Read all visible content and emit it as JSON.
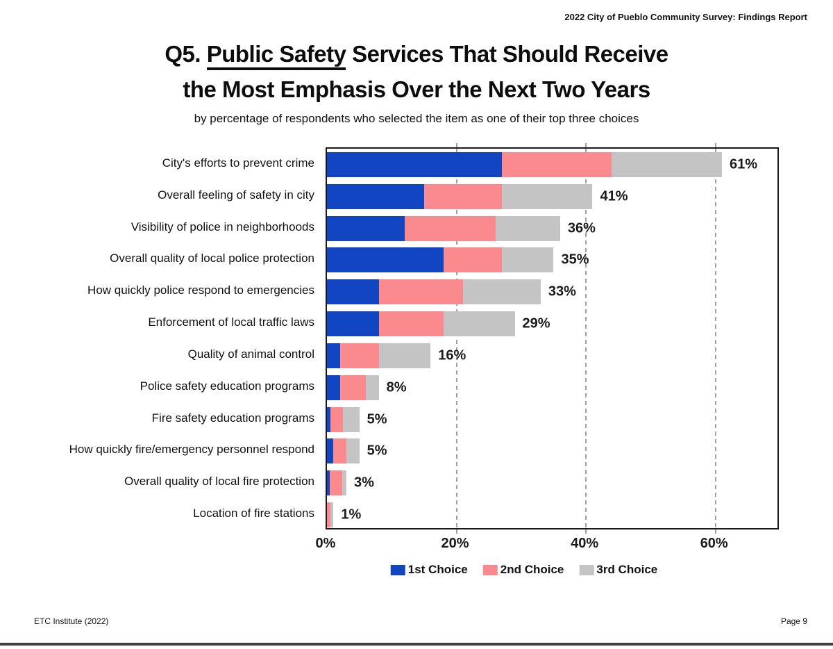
{
  "header": {
    "report_title": "2022 City of Pueblo Community Survey:  Findings Report"
  },
  "title": {
    "prefix": "Q5. ",
    "underlined": "Public Safety",
    "line1_rest": " Services That Should Receive",
    "line2": "the Most Emphasis Over the Next Two Years",
    "subtitle": "by percentage of respondents who selected the item as one of their top three choices"
  },
  "footer": {
    "left": "ETC Institute (2022)",
    "right": "Page 9"
  },
  "colors": {
    "first_choice": "#1145C2",
    "second_choice": "#FB8A8E",
    "third_choice": "#C4C4C4",
    "grid": "#A0A0A0",
    "plot_border": "#1A1A1A",
    "text": "#1A1A1A"
  },
  "chart_data": {
    "type": "bar",
    "orientation": "horizontal",
    "stacked": true,
    "title": "Q5. Public Safety Services That Should Receive the Most Emphasis Over the Next Two Years",
    "subtitle": "by percentage of respondents who selected the item as one of their top three choices",
    "xlabel": "",
    "ylabel": "",
    "xlim": [
      0,
      70
    ],
    "xticks": [
      0,
      20,
      40,
      60
    ],
    "xtick_labels": [
      "0%",
      "20%",
      "40%",
      "60%"
    ],
    "grid": "vertical dashed gridlines at 20%, 40%, 60%",
    "legend_position": "bottom",
    "categories": [
      "City's efforts to prevent crime",
      "Overall feeling of safety in city",
      "Visibility of police in neighborhoods",
      "Overall quality of local police protection",
      "How quickly police respond to emergencies",
      "Enforcement of local traffic laws",
      "Quality of animal control",
      "Police safety education programs",
      "Fire safety education programs",
      "How quickly fire/emergency personnel respond",
      "Overall quality of local fire protection",
      "Location of fire stations"
    ],
    "series": [
      {
        "name": "1st Choice",
        "color": "#1145C2",
        "values": [
          27,
          15,
          12,
          18,
          8,
          8,
          2,
          2,
          0.5,
          1,
          0.4,
          0
        ]
      },
      {
        "name": "2nd Choice",
        "color": "#FB8A8E",
        "values": [
          17,
          12,
          14,
          9,
          13,
          10,
          6,
          4,
          2,
          2,
          2,
          0.5
        ]
      },
      {
        "name": "3rd Choice",
        "color": "#C4C4C4",
        "values": [
          17,
          14,
          10,
          8,
          12,
          11,
          8,
          2,
          2.5,
          2,
          0.6,
          0.5
        ]
      }
    ],
    "total_labels": [
      "61%",
      "41%",
      "36%",
      "35%",
      "33%",
      "29%",
      "16%",
      "8%",
      "5%",
      "5%",
      "3%",
      "1%"
    ]
  }
}
